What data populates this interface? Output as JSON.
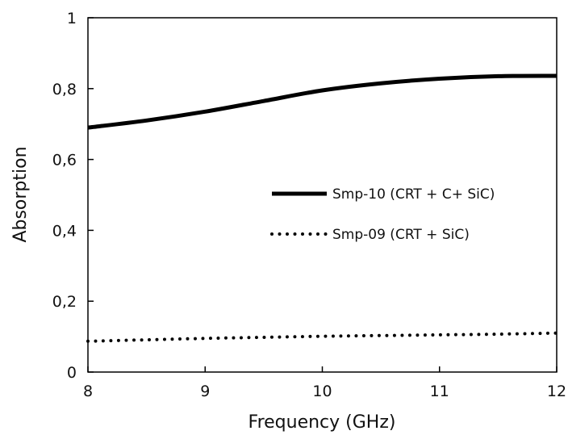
{
  "chart_data": {
    "type": "line",
    "xlabel": "Frequency (GHz)",
    "ylabel": "Absorption",
    "xlim": [
      8,
      12
    ],
    "ylim": [
      0,
      1
    ],
    "x_ticks": [
      8,
      9,
      10,
      11,
      12
    ],
    "x_tick_labels": [
      "8",
      "9",
      "10",
      "11",
      "12"
    ],
    "y_ticks": [
      0,
      0.2,
      0.4,
      0.6,
      0.8,
      1
    ],
    "y_tick_labels": [
      "0",
      "0,2",
      "0,4",
      "0,6",
      "0,8",
      "1"
    ],
    "grid": false,
    "legend_position": "center-right",
    "series": [
      {
        "name": "Smp-10 (CRT + C+ SiC)",
        "style": "solid",
        "color": "#000000",
        "x": [
          8,
          8.5,
          9,
          9.5,
          10,
          10.5,
          11,
          11.5,
          12
        ],
        "y": [
          0.69,
          0.71,
          0.735,
          0.765,
          0.795,
          0.815,
          0.828,
          0.835,
          0.836
        ]
      },
      {
        "name": "Smp-09 (CRT + SiC)",
        "style": "dotted",
        "color": "#000000",
        "x": [
          8,
          8.5,
          9,
          9.5,
          10,
          10.5,
          11,
          11.5,
          12
        ],
        "y": [
          0.087,
          0.091,
          0.095,
          0.098,
          0.101,
          0.103,
          0.105,
          0.107,
          0.11
        ]
      }
    ]
  }
}
